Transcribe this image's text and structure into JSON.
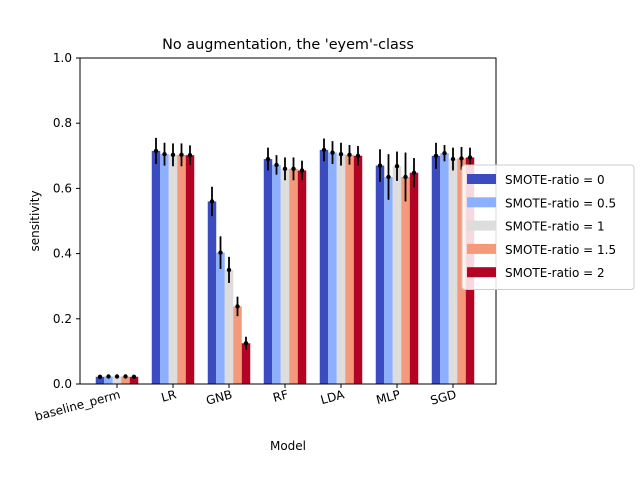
{
  "chart_data": {
    "type": "bar",
    "title": "No augmentation, the 'eyem'-class",
    "xlabel": "Model",
    "ylabel": "sensitivity",
    "ylim": [
      0,
      1.0
    ],
    "yticks": [
      0.0,
      0.2,
      0.4,
      0.6,
      0.8,
      1.0
    ],
    "grid": false,
    "legend_position": "right, outside plot",
    "categories": [
      "baseline_perm",
      "LR",
      "GNB",
      "RF",
      "LDA",
      "MLP",
      "SGD"
    ],
    "series": [
      {
        "name": "SMOTE-ratio = 0",
        "color": "#3b4cc0",
        "values": [
          0.022,
          0.715,
          0.56,
          0.69,
          0.718,
          0.67,
          0.7
        ],
        "errors": [
          0.003,
          0.04,
          0.045,
          0.035,
          0.035,
          0.05,
          0.04
        ]
      },
      {
        "name": "SMOTE-ratio = 0.5",
        "color": "#8db0fe",
        "values": [
          0.023,
          0.705,
          0.403,
          0.672,
          0.71,
          0.635,
          0.708
        ],
        "errors": [
          0.003,
          0.035,
          0.05,
          0.03,
          0.035,
          0.07,
          0.025
        ]
      },
      {
        "name": "SMOTE-ratio = 1",
        "color": "#dddddd",
        "values": [
          0.023,
          0.703,
          0.35,
          0.66,
          0.705,
          0.668,
          0.69
        ],
        "errors": [
          0.003,
          0.035,
          0.04,
          0.035,
          0.035,
          0.045,
          0.035
        ]
      },
      {
        "name": "SMOTE-ratio = 1.5",
        "color": "#f49a7b",
        "values": [
          0.023,
          0.703,
          0.238,
          0.66,
          0.703,
          0.635,
          0.692
        ],
        "errors": [
          0.003,
          0.035,
          0.03,
          0.035,
          0.03,
          0.075,
          0.035
        ]
      },
      {
        "name": "SMOTE-ratio = 2",
        "color": "#b40426",
        "values": [
          0.022,
          0.702,
          0.125,
          0.655,
          0.7,
          0.648,
          0.695
        ],
        "errors": [
          0.003,
          0.03,
          0.02,
          0.03,
          0.03,
          0.045,
          0.03
        ]
      }
    ]
  }
}
